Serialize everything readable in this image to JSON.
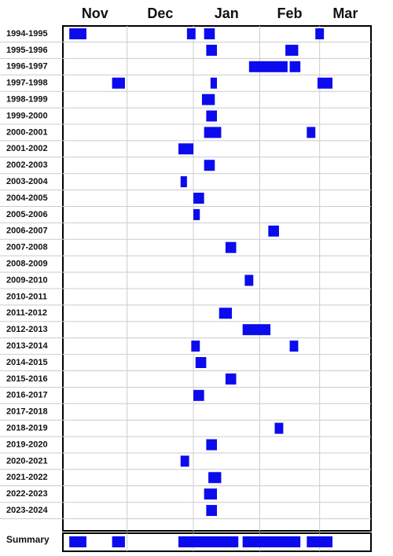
{
  "chart_data": {
    "type": "timeline",
    "color": "#0b0bee",
    "xlim": [
      0,
      144
    ],
    "xticks": [
      {
        "value": 15,
        "label": "Nov"
      },
      {
        "value": 45.5,
        "label": "Dec"
      },
      {
        "value": 76.5,
        "label": "Jan"
      },
      {
        "value": 106,
        "label": "Feb"
      },
      {
        "value": 132,
        "label": "Mar"
      }
    ],
    "month_bounds": [
      30,
      61,
      92,
      120
    ],
    "categories": [
      "1994-1995",
      "1995-1996",
      "1996-1997",
      "1997-1998",
      "1998-1999",
      "1999-2000",
      "2000-2001",
      "2001-2002",
      "2002-2003",
      "2003-2004",
      "2004-2005",
      "2005-2006",
      "2006-2007",
      "2007-2008",
      "2008-2009",
      "2009-2010",
      "2010-2011",
      "2011-2012",
      "2012-2013",
      "2013-2014",
      "2014-2015",
      "2015-2016",
      "2016-2017",
      "2017-2018",
      "2018-2019",
      "2019-2020",
      "2020-2021",
      "2021-2022",
      "2022-2023",
      "2023-2024"
    ],
    "events": [
      [
        [
          3,
          11
        ],
        [
          58,
          62
        ],
        [
          66,
          71
        ],
        [
          118,
          122
        ]
      ],
      [
        [
          67,
          72
        ],
        [
          104,
          110
        ]
      ],
      [
        [
          87,
          105
        ],
        [
          106,
          111
        ]
      ],
      [
        [
          23,
          29
        ],
        [
          69,
          72
        ],
        [
          119,
          126
        ]
      ],
      [
        [
          65,
          71
        ]
      ],
      [
        [
          67,
          72
        ]
      ],
      [
        [
          66,
          74
        ],
        [
          114,
          118
        ]
      ],
      [
        [
          54,
          61
        ]
      ],
      [
        [
          66,
          71
        ]
      ],
      [
        [
          55,
          58
        ]
      ],
      [
        [
          61,
          66
        ]
      ],
      [
        [
          61,
          64
        ]
      ],
      [
        [
          96,
          101
        ]
      ],
      [
        [
          76,
          81
        ]
      ],
      [],
      [
        [
          85,
          89
        ]
      ],
      [],
      [
        [
          73,
          79
        ]
      ],
      [
        [
          84,
          97
        ]
      ],
      [
        [
          60,
          64
        ],
        [
          106,
          110
        ]
      ],
      [
        [
          62,
          67
        ]
      ],
      [
        [
          76,
          81
        ]
      ],
      [
        [
          61,
          66
        ]
      ],
      [],
      [
        [
          99,
          103
        ]
      ],
      [
        [
          67,
          72
        ]
      ],
      [
        [
          55,
          59
        ]
      ],
      [
        [
          68,
          74
        ]
      ],
      [
        [
          66,
          72
        ]
      ],
      [
        [
          67,
          72
        ]
      ]
    ],
    "summary_label": "Summary",
    "summary_events": [
      [
        3,
        11
      ],
      [
        23,
        29
      ],
      [
        54,
        82
      ],
      [
        84,
        111
      ],
      [
        114,
        126
      ]
    ]
  }
}
